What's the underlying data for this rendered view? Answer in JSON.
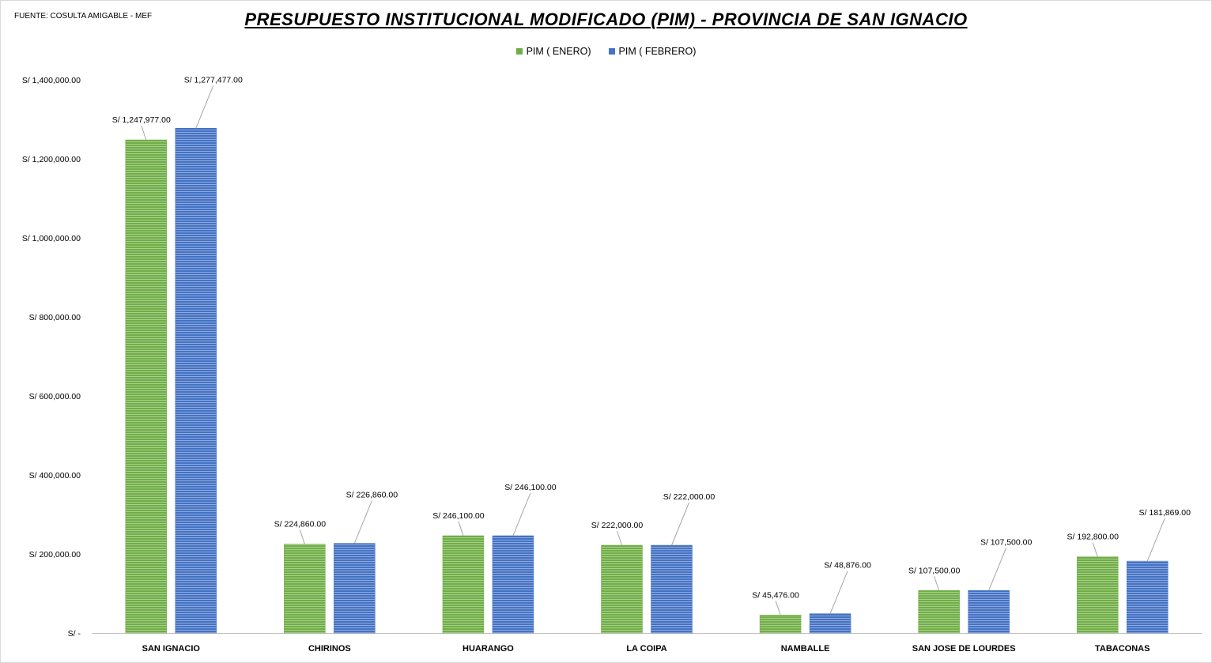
{
  "source_label": "FUENTE: COSULTA AMIGABLE - MEF",
  "chart_data": {
    "type": "bar",
    "title": "PRESUPUESTO INSTITUCIONAL MODIFICADO (PIM) - PROVINCIA DE SAN IGNACIO",
    "categories": [
      "SAN IGNACIO",
      "CHIRINOS",
      "HUARANGO",
      "LA COIPA",
      "NAMBALLE",
      "SAN JOSE DE LOURDES",
      "TABACONAS"
    ],
    "series": [
      {
        "name": "PIM ( ENERO)",
        "color": "#70ad47",
        "values": [
          1247977,
          224860,
          246100,
          222000,
          45476,
          107500,
          192800
        ],
        "labels": [
          "S/ 1,247,977.00",
          "S/ 224,860.00",
          "S/ 246,100.00",
          "S/ 222,000.00",
          "S/ 45,476.00",
          "S/ 107,500.00",
          "S/ 192,800.00"
        ]
      },
      {
        "name": "PIM ( FEBRERO)",
        "color": "#4472c4",
        "values": [
          1277477,
          226860,
          246100,
          222000,
          48876,
          107500,
          181869
        ],
        "labels": [
          "S/ 1,277,477.00",
          "S/ 226,860.00",
          "S/ 246,100.00",
          "S/ 222,000.00",
          "S/ 48,876.00",
          "S/ 107,500.00",
          "S/ 181,869.00"
        ]
      }
    ],
    "ylim": [
      0,
      1400000
    ],
    "yticks": [
      0,
      200000,
      400000,
      600000,
      800000,
      1000000,
      1200000,
      1400000
    ],
    "ytick_labels": [
      "S/ -",
      "S/ 200,000.00",
      "S/ 400,000.00",
      "S/ 600,000.00",
      "S/ 800,000.00",
      "S/ 1,000,000.00",
      "S/ 1,200,000.00",
      "S/ 1,400,000.00"
    ],
    "grid": false,
    "legend_position": "top-center"
  }
}
